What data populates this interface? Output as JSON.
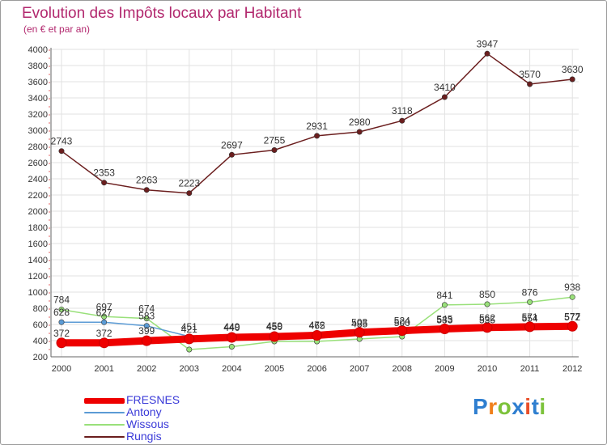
{
  "title": "Evolution des Impôts locaux par Habitant",
  "subtitle": "(en € et par an)",
  "logo": {
    "text": "Proxiti",
    "letter_colors": [
      "#2f7fd0",
      "#f07f1a",
      "#7cc23a",
      "#2f7fd0",
      "#e84f2a",
      "#2f7fd0",
      "#7cc23a"
    ]
  },
  "chart_data": {
    "type": "line",
    "title": "Evolution des Impôts locaux par Habitant",
    "subtitle": "(en € et par an)",
    "xlabel": "",
    "ylabel": "",
    "x": [
      "2000",
      "2001",
      "2002",
      "2003",
      "2004",
      "2005",
      "2006",
      "2007",
      "2008",
      "2009",
      "2010",
      "2011",
      "2012"
    ],
    "ylim": [
      200,
      4000
    ],
    "ytick_labels": [
      "200",
      "400",
      "600",
      "800",
      "1000",
      "1200",
      "1400",
      "1600",
      "1800",
      "2000",
      "2200",
      "2400",
      "2600",
      "2800",
      "3000",
      "3200",
      "3400",
      "3600",
      "3800",
      "4000"
    ],
    "legend_position": "bottom-left",
    "series": [
      {
        "name": "Rungis",
        "color": "#6b1e1e",
        "values": [
          2743,
          2353,
          2263,
          2223,
          2697,
          2755,
          2931,
          2980,
          3118,
          3410,
          3947,
          3570,
          3630
        ],
        "labels": [
          "2743",
          "2353",
          "2263",
          "2223",
          "2697",
          "2755",
          "2931",
          "2980",
          "3118",
          "3410",
          "3947",
          "3570",
          "3630"
        ]
      },
      {
        "name": "Wissous",
        "color": "#99e07a",
        "values": [
          784,
          697,
          674,
          290,
          325,
          390,
          390,
          420,
          450,
          841,
          850,
          876,
          938
        ],
        "labels": [
          "784",
          "697",
          "674",
          "",
          "",
          "",
          "",
          "",
          "",
          "841",
          "850",
          "876",
          "938"
        ]
      },
      {
        "name": "Antony",
        "color": "#5b9bd5",
        "values": [
          628,
          627,
          583,
          451,
          449,
          459,
          472,
          485,
          500,
          533,
          535,
          554,
          572
        ],
        "labels": [
          "628",
          "627",
          "583",
          "451",
          "449",
          "459",
          "472",
          "485",
          "500",
          "533",
          "535",
          "554",
          "572"
        ]
      },
      {
        "name": "FRESNES",
        "color": "#ee0000",
        "values": [
          372,
          372,
          399,
          421,
          440,
          450,
          465,
          503,
          524,
          545,
          562,
          571,
          577
        ],
        "labels": [
          "372",
          "372",
          "399",
          "421",
          "440",
          "450",
          "465",
          "503",
          "524",
          "545",
          "562",
          "571",
          "577"
        ]
      }
    ],
    "legend": [
      {
        "name": "FRESNES",
        "color": "#ee0000"
      },
      {
        "name": "Antony",
        "color": "#5b9bd5"
      },
      {
        "name": "Wissous",
        "color": "#99e07a"
      },
      {
        "name": "Rungis",
        "color": "#6b1e1e"
      }
    ]
  }
}
